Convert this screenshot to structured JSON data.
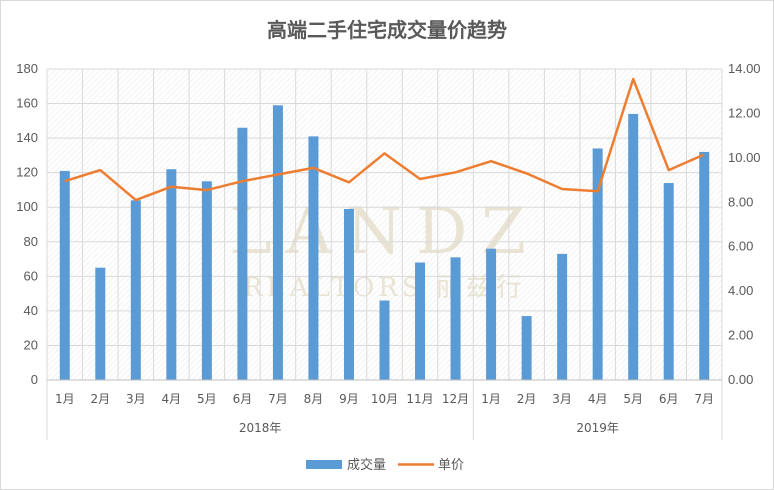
{
  "chart_data": {
    "type": "bar+line",
    "title": "高端二手住宅成交量价趋势",
    "categories": [
      "1月",
      "2月",
      "3月",
      "4月",
      "5月",
      "6月",
      "7月",
      "8月",
      "9月",
      "10月",
      "11月",
      "12月",
      "1月",
      "2月",
      "3月",
      "4月",
      "5月",
      "6月",
      "7月"
    ],
    "groups": [
      {
        "label": "2018年",
        "count": 12
      },
      {
        "label": "2019年",
        "count": 7
      }
    ],
    "series": [
      {
        "name": "成交量",
        "type": "bar",
        "axis": "left",
        "color": "#5b9bd5",
        "values": [
          121,
          65,
          104,
          122,
          115,
          146,
          159,
          141,
          99,
          46,
          68,
          71,
          76,
          37,
          73,
          134,
          154,
          114,
          132
        ]
      },
      {
        "name": "单价",
        "type": "line",
        "axis": "right",
        "color": "#ed7d31",
        "values": [
          8.95,
          9.45,
          8.1,
          8.7,
          8.55,
          8.95,
          9.25,
          9.55,
          8.9,
          10.2,
          9.05,
          9.35,
          9.85,
          9.3,
          8.6,
          8.5,
          13.55,
          9.45,
          10.15
        ]
      }
    ],
    "y_left": {
      "min": 0,
      "max": 180,
      "ticks": [
        "0",
        "20",
        "40",
        "60",
        "80",
        "100",
        "120",
        "140",
        "160",
        "180"
      ]
    },
    "y_right": {
      "min": 0,
      "max": 14,
      "ticks": [
        "0.00",
        "2.00",
        "4.00",
        "6.00",
        "8.00",
        "10.00",
        "12.00",
        "14.00"
      ]
    },
    "legend_position": "bottom",
    "watermark": {
      "main": "LANDZ",
      "sub": "REALTORS 丽兹行"
    }
  }
}
